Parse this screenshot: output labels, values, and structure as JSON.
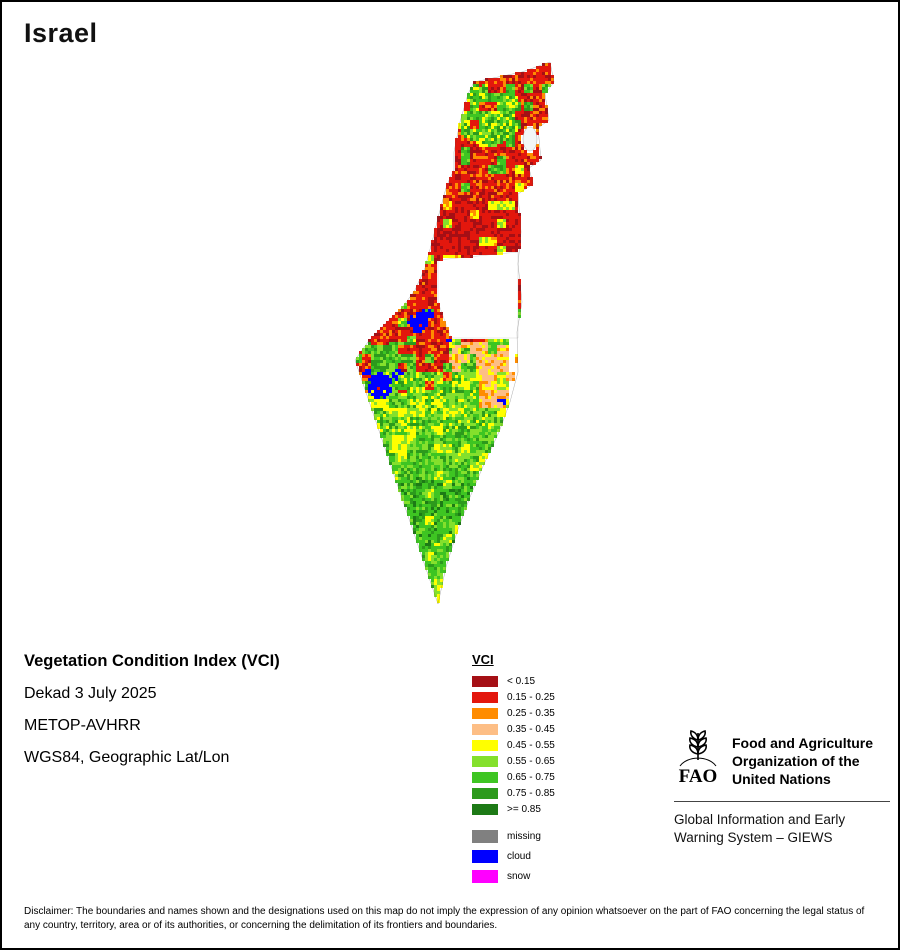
{
  "page": {
    "title": "Israel"
  },
  "info": {
    "heading": "Vegetation Condition Index (VCI)",
    "dekad": "Dekad 3 July 2025",
    "sensor": "METOP-AVHRR",
    "projection": "WGS84, Geographic Lat/Lon"
  },
  "legend": {
    "title": "VCI",
    "classes": [
      {
        "label": "< 0.15",
        "color": "#a50f15"
      },
      {
        "label": "0.15 - 0.25",
        "color": "#e3170d"
      },
      {
        "label": "0.25 - 0.35",
        "color": "#ff8c00"
      },
      {
        "label": "0.35 - 0.45",
        "color": "#fdbe85"
      },
      {
        "label": "0.45 - 0.55",
        "color": "#ffff00"
      },
      {
        "label": "0.55 - 0.65",
        "color": "#84e02c"
      },
      {
        "label": "0.65 - 0.75",
        "color": "#3ec522"
      },
      {
        "label": "0.75 - 0.85",
        "color": "#2c9a1c"
      },
      {
        "label": ">= 0.85",
        "color": "#1d7a16"
      }
    ],
    "extras": [
      {
        "label": "missing",
        "color": "#808080"
      },
      {
        "label": "cloud",
        "color": "#0000ff"
      },
      {
        "label": "snow",
        "color": "#ff00ff"
      }
    ]
  },
  "footer": {
    "fao_logo_label": "FAO",
    "fao_motto": "FIAT PANIS",
    "org_name": "Food and Agriculture Organization of the United Nations",
    "giews": "Global Information and Early Warning System – GIEWS"
  },
  "disclaimer": "Disclaimer: The boundaries and names shown and the designations used on this map do not imply the expression of any opinion whatsoever on the part of FAO concerning the legal status of any country, territory, area or of its authorities, or concerning the delimitation of its frontiers and boundaries."
}
